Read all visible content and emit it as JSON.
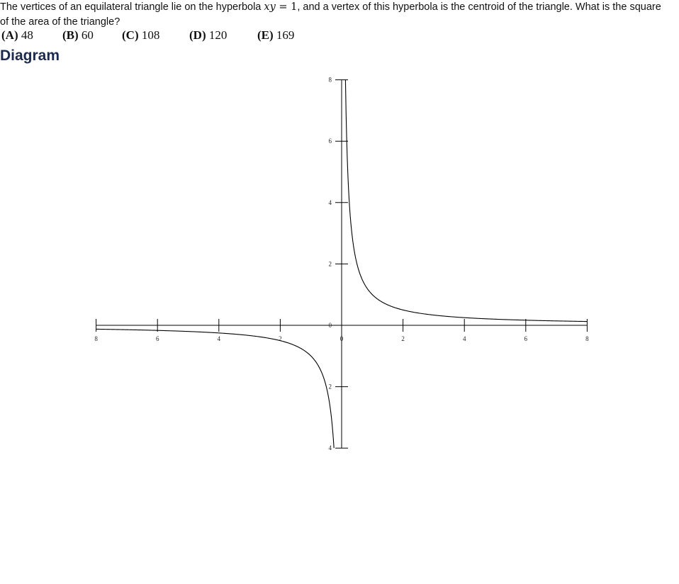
{
  "problem": {
    "text_before": "The vertices of an equilateral triangle lie on the hyperbola ",
    "math_xy": "xy",
    "math_eq": " = 1",
    "text_after": ", and a vertex of this hyperbola is the centroid of the triangle. What is the square of the area of the triangle?"
  },
  "choices": [
    {
      "letter": "(A)",
      "value": "48"
    },
    {
      "letter": "(B)",
      "value": "60"
    },
    {
      "letter": "(C)",
      "value": "108"
    },
    {
      "letter": "(D)",
      "value": "120"
    },
    {
      "letter": "(E)",
      "value": "169"
    }
  ],
  "diagram_heading": "Diagram",
  "chart_data": {
    "type": "line",
    "series": [
      {
        "function": "y = 1/x"
      }
    ],
    "xlim": [
      -8,
      8
    ],
    "ylim": [
      -4,
      8
    ],
    "x_tick_labels": [
      "8",
      "6",
      "4",
      "2",
      "0",
      "2",
      "4",
      "6",
      "8"
    ],
    "x_tick_values": [
      -8,
      -6,
      -4,
      -2,
      0,
      2,
      4,
      6,
      8
    ],
    "y_tick_labels": [
      "8",
      "6",
      "4",
      "2",
      "0",
      "2",
      "4"
    ],
    "y_tick_values": [
      8,
      6,
      4,
      2,
      0,
      -2,
      -4
    ],
    "grid": false
  }
}
